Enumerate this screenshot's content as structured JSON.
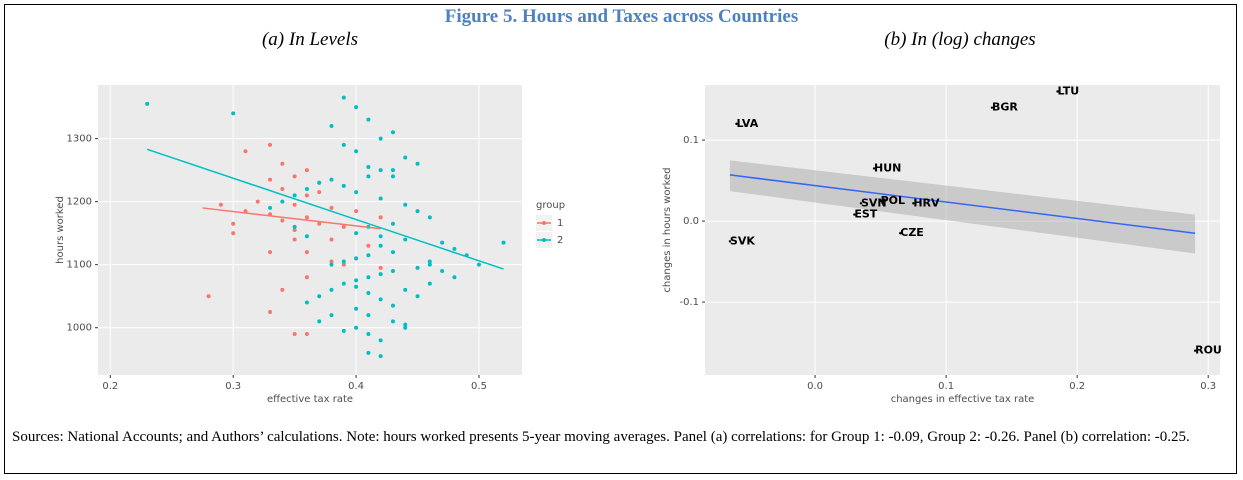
{
  "title": "Figure 5. Hours and Taxes across Countries",
  "note": "Sources: National Accounts; and Authors’ calculations. Note: hours worked presents 5-year moving averages. Panel (a) correlations: for Group 1: -0.09, Group 2: -0.26. Panel (b) correlation: -0.25.",
  "chart_data": [
    {
      "type": "scatter",
      "title": "(a) In Levels",
      "x_label": "effective tax rate",
      "y_label": "hours worked",
      "xlim": [
        0.19,
        0.535
      ],
      "ylim": [
        925,
        1385
      ],
      "xticks": [
        0.2,
        0.3,
        0.4,
        0.5
      ],
      "yticks": [
        1000,
        1100,
        1200,
        1300
      ],
      "legend_title": "group",
      "grid": true,
      "series": [
        {
          "name": "1",
          "color": "#F8766D",
          "x": [
            0.33,
            0.31,
            0.34,
            0.36,
            0.35,
            0.33,
            0.37,
            0.34,
            0.36,
            0.32,
            0.35,
            0.38,
            0.31,
            0.33,
            0.36,
            0.34,
            0.37,
            0.39,
            0.35,
            0.3,
            0.38,
            0.41,
            0.36,
            0.4,
            0.39,
            0.42,
            0.38,
            0.36,
            0.34,
            0.28,
            0.33,
            0.35,
            0.36,
            0.42,
            0.4,
            0.3,
            0.29,
            0.37,
            0.33,
            0.35
          ],
          "values": [
            1290,
            1280,
            1260,
            1250,
            1240,
            1235,
            1230,
            1220,
            1210,
            1200,
            1195,
            1190,
            1185,
            1180,
            1175,
            1170,
            1165,
            1160,
            1155,
            1150,
            1140,
            1130,
            1120,
            1110,
            1100,
            1095,
            1105,
            1080,
            1060,
            1050,
            1025,
            990,
            990,
            1175,
            1185,
            1165,
            1195,
            1215,
            1120,
            1140
          ],
          "fit": {
            "x": [
              0.275,
              0.42
            ],
            "values": [
              1190,
              1157
            ]
          }
        },
        {
          "name": "2",
          "color": "#00BFC4",
          "x": [
            0.23,
            0.3,
            0.39,
            0.4,
            0.41,
            0.38,
            0.43,
            0.42,
            0.39,
            0.4,
            0.44,
            0.45,
            0.43,
            0.41,
            0.38,
            0.37,
            0.36,
            0.35,
            0.34,
            0.33,
            0.39,
            0.4,
            0.42,
            0.44,
            0.45,
            0.46,
            0.43,
            0.41,
            0.4,
            0.42,
            0.44,
            0.47,
            0.48,
            0.49,
            0.46,
            0.45,
            0.43,
            0.42,
            0.41,
            0.4,
            0.39,
            0.38,
            0.37,
            0.36,
            0.4,
            0.41,
            0.43,
            0.44,
            0.46,
            0.47,
            0.48,
            0.5,
            0.52,
            0.42,
            0.43,
            0.41,
            0.4,
            0.39,
            0.38,
            0.4,
            0.41,
            0.42,
            0.44,
            0.45,
            0.43,
            0.46,
            0.41,
            0.42,
            0.4,
            0.38,
            0.37,
            0.39,
            0.41,
            0.42,
            0.44,
            0.36,
            0.35,
            0.43,
            0.42,
            0.41
          ],
          "values": [
            1355,
            1340,
            1365,
            1350,
            1330,
            1320,
            1310,
            1300,
            1290,
            1280,
            1270,
            1260,
            1250,
            1240,
            1235,
            1230,
            1220,
            1210,
            1200,
            1190,
            1225,
            1215,
            1205,
            1195,
            1185,
            1175,
            1165,
            1160,
            1150,
            1145,
            1140,
            1135,
            1125,
            1115,
            1105,
            1095,
            1090,
            1085,
            1080,
            1075,
            1070,
            1060,
            1050,
            1040,
            1030,
            1020,
            1010,
            1000,
            1100,
            1090,
            1080,
            1100,
            1135,
            1130,
            1120,
            1115,
            1110,
            1105,
            1100,
            1065,
            1055,
            1045,
            1060,
            1050,
            1035,
            1070,
            990,
            980,
            1000,
            1020,
            1010,
            995,
            960,
            955,
            1005,
            1145,
            1160,
            1240,
            1250,
            1255
          ],
          "fit": {
            "x": [
              0.23,
              0.52
            ],
            "values": [
              1283,
              1093
            ]
          }
        }
      ]
    },
    {
      "type": "text-scatter",
      "title": "(b) In (log) changes",
      "x_label": "changes in effective tax rate",
      "y_label": "changes in hours worked",
      "xlim": [
        -0.084,
        0.309
      ],
      "ylim": [
        -0.19,
        0.168
      ],
      "xticks": [
        {
          "value": 0,
          "label": "0.0"
        },
        0.1,
        0.2,
        0.3
      ],
      "yticks": [
        -0.1,
        {
          "value": 0,
          "label": "0.0"
        },
        0.1
      ],
      "grid": true,
      "labels": [
        "LTU",
        "BGR",
        "LVA",
        "HUN",
        "SVN",
        "POL",
        "HRV",
        "EST",
        "CZE",
        "SVK",
        "ROU"
      ],
      "x": [
        0.185,
        0.135,
        -0.06,
        0.045,
        0.035,
        0.05,
        0.075,
        0.03,
        0.065,
        -0.065,
        0.29
      ],
      "values": [
        0.16,
        0.14,
        0.12,
        0.065,
        0.022,
        0.025,
        0.022,
        0.008,
        -0.015,
        -0.025,
        -0.16
      ],
      "fit": {
        "color": "#3366FF",
        "x": [
          -0.065,
          0.29
        ],
        "values": [
          0.057,
          -0.015
        ],
        "lower": [
          0.037,
          -0.04
        ],
        "upper": [
          0.075,
          0.008
        ]
      }
    }
  ]
}
